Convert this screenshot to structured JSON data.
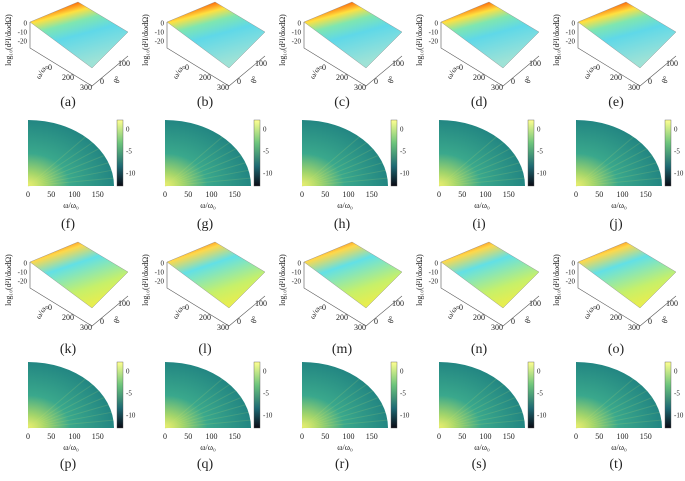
{
  "surface_axes": {
    "z_label": "log₁₀(d²I/dωdΩ)",
    "omega_label": "ω/ω₀",
    "theta_label": "θ°",
    "z_ticks": [
      "0",
      "-10",
      "-20"
    ],
    "omega_ticks": [
      "0",
      "200",
      "300"
    ],
    "theta_ticks": [
      "0",
      "100"
    ]
  },
  "map_axes": {
    "x_label": "ω/ω₀",
    "x_ticks": [
      "0",
      "50",
      "100",
      "150"
    ],
    "colorbar_ticks": [
      "0",
      "-5",
      "-10"
    ]
  },
  "panels": [
    {
      "label": "(a)",
      "kind": "surface"
    },
    {
      "label": "(b)",
      "kind": "surface"
    },
    {
      "label": "(c)",
      "kind": "surface"
    },
    {
      "label": "(d)",
      "kind": "surface"
    },
    {
      "label": "(e)",
      "kind": "surface"
    },
    {
      "label": "(f)",
      "kind": "map"
    },
    {
      "label": "(g)",
      "kind": "map"
    },
    {
      "label": "(h)",
      "kind": "map"
    },
    {
      "label": "(i)",
      "kind": "map"
    },
    {
      "label": "(j)",
      "kind": "map"
    },
    {
      "label": "(k)",
      "kind": "surface"
    },
    {
      "label": "(l)",
      "kind": "surface"
    },
    {
      "label": "(m)",
      "kind": "surface"
    },
    {
      "label": "(n)",
      "kind": "surface"
    },
    {
      "label": "(o)",
      "kind": "surface"
    },
    {
      "label": "(p)",
      "kind": "map"
    },
    {
      "label": "(q)",
      "kind": "map"
    },
    {
      "label": "(r)",
      "kind": "map"
    },
    {
      "label": "(s)",
      "kind": "map"
    },
    {
      "label": "(t)",
      "kind": "map"
    }
  ]
}
